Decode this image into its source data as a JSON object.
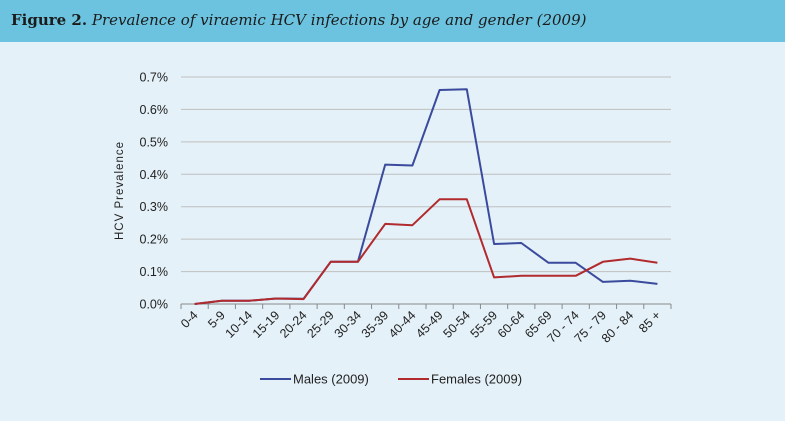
{
  "figure": {
    "label": "Figure 2.",
    "title": "Prevalence of viraemic HCV infections by age and gender (2009)"
  },
  "chart_data": {
    "type": "line",
    "title": "",
    "xlabel": "",
    "ylabel": "HCV Prevalence",
    "ylim": [
      0,
      0.7
    ],
    "yticks": [
      "0.0%",
      "0.1%",
      "0.2%",
      "0.3%",
      "0.4%",
      "0.5%",
      "0.6%",
      "0.7%"
    ],
    "grid": "horizontal",
    "legend_position": "bottom",
    "categories": [
      "0-4",
      "5-9",
      "10-14",
      "15-19",
      "20-24",
      "25-29",
      "30-34",
      "35-39",
      "40-44",
      "45-49",
      "50-54",
      "55-59",
      "60-64",
      "65-69",
      "70 - 74",
      "75 - 79",
      "80 - 84",
      "85 +"
    ],
    "series": [
      {
        "name": "Males (2009)",
        "color": "#3a4a9c",
        "values": [
          0.0,
          0.01,
          0.01,
          0.017,
          0.016,
          0.13,
          0.13,
          0.43,
          0.427,
          0.66,
          0.662,
          0.185,
          0.188,
          0.127,
          0.127,
          0.068,
          0.072,
          0.062
        ]
      },
      {
        "name": "Females (2009)",
        "color": "#b12a2e",
        "values": [
          0.0,
          0.01,
          0.01,
          0.017,
          0.015,
          0.13,
          0.13,
          0.247,
          0.243,
          0.323,
          0.323,
          0.082,
          0.087,
          0.087,
          0.087,
          0.13,
          0.14,
          0.127
        ]
      }
    ]
  }
}
